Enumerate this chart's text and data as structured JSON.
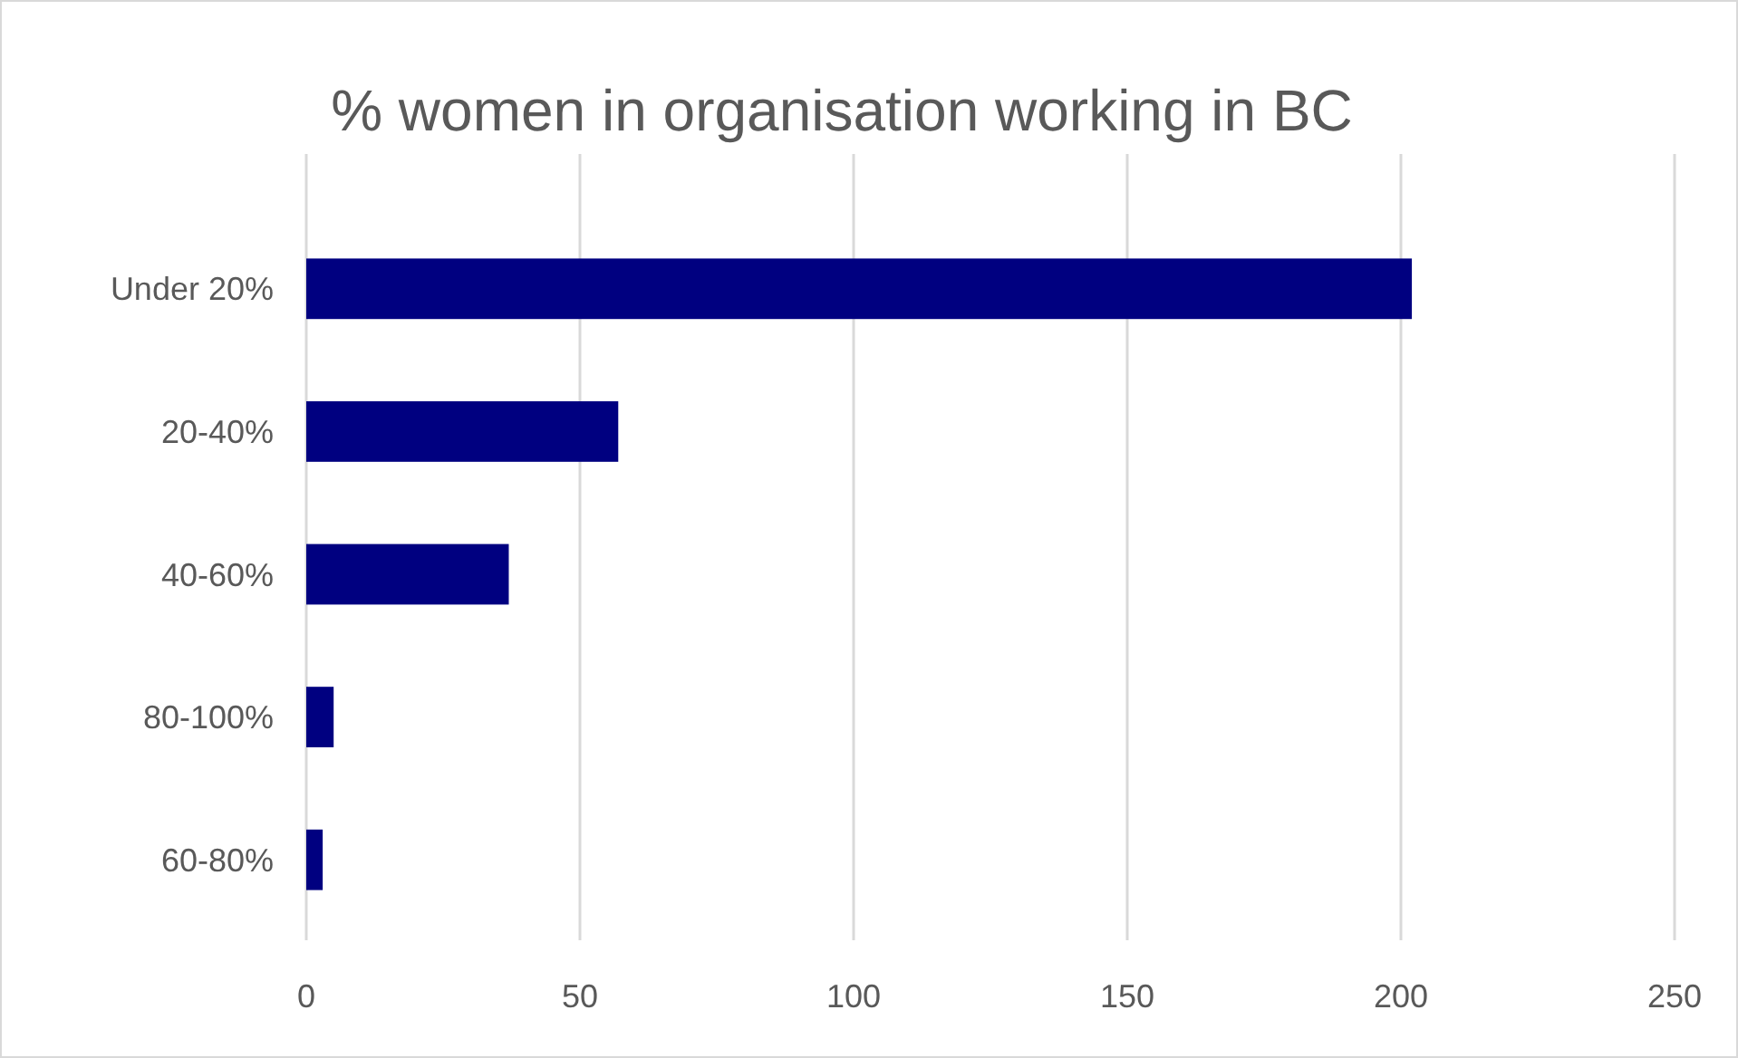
{
  "chart_data": {
    "type": "bar",
    "orientation": "horizontal",
    "title": "% women in organisation working in BC",
    "categories": [
      "Under 20%",
      "20-40%",
      "40-60%",
      "80-100%",
      "60-80%"
    ],
    "values": [
      202,
      57,
      37,
      5,
      3
    ],
    "color": "#000080",
    "xlim": [
      0,
      250
    ],
    "xticks": [
      0,
      50,
      100,
      150,
      200,
      250
    ],
    "grid": "x"
  }
}
